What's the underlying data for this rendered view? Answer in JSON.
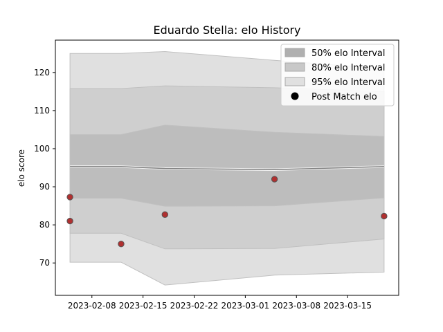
{
  "chart_data": {
    "type": "line",
    "title": "Eduardo Stella: elo History",
    "xlabel": "",
    "ylabel": "elo score",
    "xlim": [
      "2023-02-03",
      "2023-03-22"
    ],
    "ylim": [
      61.5,
      128.5
    ],
    "x_ticks": [
      "2023-02-08",
      "2023-02-15",
      "2023-02-22",
      "2023-03-01",
      "2023-03-08",
      "2023-03-15"
    ],
    "y_ticks": [
      70,
      80,
      90,
      100,
      110,
      120
    ],
    "grid": false,
    "legend_position": "top-right",
    "legend": [
      {
        "label": "50% elo Interval",
        "kind": "patch",
        "color": "#b0b0b0"
      },
      {
        "label": "80% elo Interval",
        "kind": "patch",
        "color": "#c8c8c8"
      },
      {
        "label": "95% elo Interval",
        "kind": "patch",
        "color": "#e0e0e0"
      },
      {
        "label": "Post Match elo",
        "kind": "marker",
        "color": "#000000"
      }
    ],
    "band_x": [
      "2023-02-05",
      "2023-02-12",
      "2023-02-18",
      "2023-03-05",
      "2023-03-20"
    ],
    "mean_line": [
      95.3,
      95.3,
      94.8,
      94.5,
      95.3
    ],
    "bands": [
      {
        "name": "95% elo Interval",
        "color": "#e0e0e0",
        "lower": [
          70.2,
          70.2,
          64.2,
          66.8,
          67.6
        ],
        "upper": [
          125.0,
          125.0,
          125.5,
          123.2,
          121.0
        ]
      },
      {
        "name": "80% elo Interval",
        "color": "#cfcfcf",
        "lower": [
          77.8,
          77.8,
          73.7,
          73.8,
          76.3
        ],
        "upper": [
          115.8,
          115.8,
          116.5,
          116.0,
          115.0
        ]
      },
      {
        "name": "50% elo Interval",
        "color": "#bdbdbd",
        "lower": [
          87.0,
          87.0,
          84.9,
          85.0,
          87.1
        ],
        "upper": [
          103.7,
          103.7,
          106.2,
          104.3,
          103.2
        ]
      }
    ],
    "points": {
      "name": "Post Match elo",
      "fill": "#b03030",
      "edge": "#555555",
      "x": [
        "2023-02-05",
        "2023-02-05",
        "2023-02-12",
        "2023-02-18",
        "2023-03-05",
        "2023-03-20"
      ],
      "y": [
        87.3,
        81.0,
        75.0,
        82.7,
        92.0,
        82.3
      ]
    }
  }
}
